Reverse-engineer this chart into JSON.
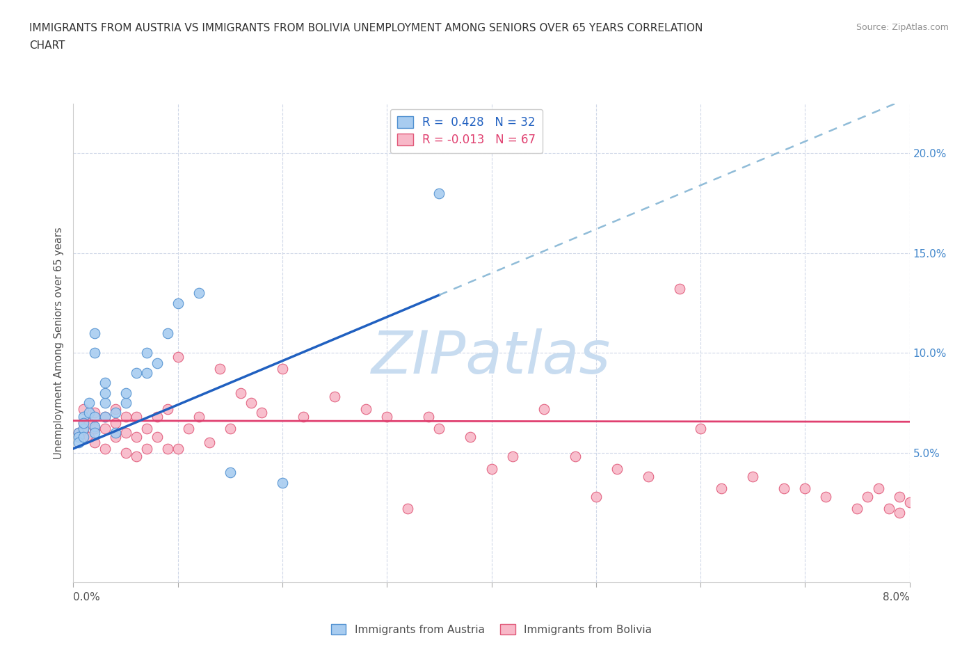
{
  "title_line1": "IMMIGRANTS FROM AUSTRIA VS IMMIGRANTS FROM BOLIVIA UNEMPLOYMENT AMONG SENIORS OVER 65 YEARS CORRELATION",
  "title_line2": "CHART",
  "source": "Source: ZipAtlas.com",
  "ylabel": "Unemployment Among Seniors over 65 years",
  "xlim": [
    0.0,
    0.08
  ],
  "ylim": [
    -0.015,
    0.225
  ],
  "austria_R": "0.428",
  "austria_N": "32",
  "bolivia_R": "-0.013",
  "bolivia_N": "67",
  "austria_color": "#A8CCF0",
  "austria_edge_color": "#5090D0",
  "bolivia_color": "#F8B8C8",
  "bolivia_edge_color": "#E05878",
  "austria_line_color": "#2060C0",
  "bolivia_line_color": "#E04070",
  "dashed_color": "#90BCD8",
  "watermark": "ZIPatlas",
  "watermark_color": "#C8DCF0",
  "right_tick_color": "#4488CC",
  "austria_x": [
    0.0005,
    0.0005,
    0.0005,
    0.001,
    0.001,
    0.001,
    0.001,
    0.0015,
    0.0015,
    0.002,
    0.002,
    0.002,
    0.002,
    0.002,
    0.003,
    0.003,
    0.003,
    0.003,
    0.004,
    0.004,
    0.005,
    0.005,
    0.006,
    0.007,
    0.007,
    0.008,
    0.009,
    0.01,
    0.012,
    0.015,
    0.02,
    0.035
  ],
  "austria_y": [
    0.06,
    0.058,
    0.055,
    0.062,
    0.068,
    0.065,
    0.058,
    0.07,
    0.075,
    0.063,
    0.068,
    0.1,
    0.11,
    0.06,
    0.068,
    0.075,
    0.08,
    0.085,
    0.07,
    0.06,
    0.075,
    0.08,
    0.09,
    0.1,
    0.09,
    0.095,
    0.11,
    0.125,
    0.13,
    0.04,
    0.035,
    0.18
  ],
  "bolivia_x": [
    0.0005,
    0.001,
    0.001,
    0.001,
    0.0015,
    0.0015,
    0.002,
    0.002,
    0.002,
    0.003,
    0.003,
    0.003,
    0.004,
    0.004,
    0.004,
    0.005,
    0.005,
    0.005,
    0.006,
    0.006,
    0.006,
    0.007,
    0.007,
    0.008,
    0.008,
    0.009,
    0.009,
    0.01,
    0.01,
    0.011,
    0.012,
    0.013,
    0.014,
    0.015,
    0.016,
    0.017,
    0.018,
    0.02,
    0.022,
    0.025,
    0.028,
    0.03,
    0.032,
    0.034,
    0.035,
    0.038,
    0.04,
    0.042,
    0.045,
    0.048,
    0.05,
    0.052,
    0.055,
    0.058,
    0.06,
    0.062,
    0.065,
    0.068,
    0.07,
    0.072,
    0.075,
    0.076,
    0.077,
    0.078,
    0.079,
    0.079,
    0.08
  ],
  "bolivia_y": [
    0.06,
    0.06,
    0.065,
    0.072,
    0.058,
    0.065,
    0.055,
    0.062,
    0.07,
    0.052,
    0.062,
    0.068,
    0.058,
    0.065,
    0.072,
    0.05,
    0.06,
    0.068,
    0.048,
    0.058,
    0.068,
    0.052,
    0.062,
    0.058,
    0.068,
    0.052,
    0.072,
    0.052,
    0.098,
    0.062,
    0.068,
    0.055,
    0.092,
    0.062,
    0.08,
    0.075,
    0.07,
    0.092,
    0.068,
    0.078,
    0.072,
    0.068,
    0.022,
    0.068,
    0.062,
    0.058,
    0.042,
    0.048,
    0.072,
    0.048,
    0.028,
    0.042,
    0.038,
    0.132,
    0.062,
    0.032,
    0.038,
    0.032,
    0.032,
    0.028,
    0.022,
    0.028,
    0.032,
    0.022,
    0.028,
    0.02,
    0.025
  ]
}
